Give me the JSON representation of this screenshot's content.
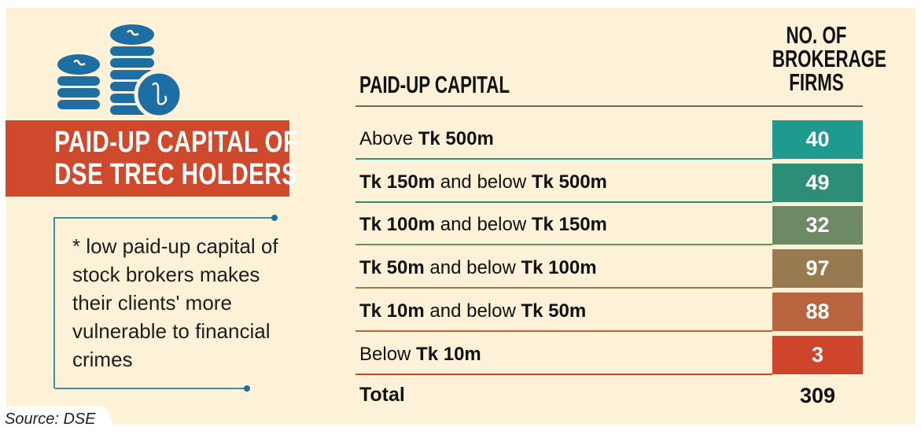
{
  "title": "PAID-UP CAPITAL OF DSE TREC HOLDERS",
  "title_lines": [
    "PAID-UP CAPITAL OF",
    "DSE TREC HOLDERS"
  ],
  "icon": "taka-coin-stack-icon",
  "note": "* low paid-up capital of stock brokers makes their clients' more vulnerable to financial crimes",
  "source": "Source: DSE",
  "table": {
    "col_label": "PAID-UP CAPITAL",
    "col_value": "NO. OF BROKERAGE FIRMS",
    "rows": [
      {
        "pre": "Above ",
        "b1": "Tk 500m",
        "mid": "",
        "b2": "",
        "value": "40",
        "color": "#1e9a8e"
      },
      {
        "pre": "",
        "b1": "Tk 150m",
        "mid": " and below ",
        "b2": "Tk 500m",
        "value": "49",
        "color": "#2d8e78"
      },
      {
        "pre": "",
        "b1": "Tk 100m",
        "mid": " and below ",
        "b2": "Tk 150m",
        "value": "32",
        "color": "#6e8a65"
      },
      {
        "pre": "",
        "b1": "Tk 50m",
        "mid": " and below ",
        "b2": "Tk 100m",
        "value": "97",
        "color": "#977a50"
      },
      {
        "pre": "",
        "b1": "Tk 10m",
        "mid": " and below ",
        "b2": "Tk 50m",
        "value": "88",
        "color": "#b8653f"
      },
      {
        "pre": "Below ",
        "b1": "Tk 10m",
        "mid": "",
        "b2": "",
        "value": "3",
        "color": "#cf452c"
      }
    ],
    "total_label": "Total",
    "total_value": "309"
  }
}
